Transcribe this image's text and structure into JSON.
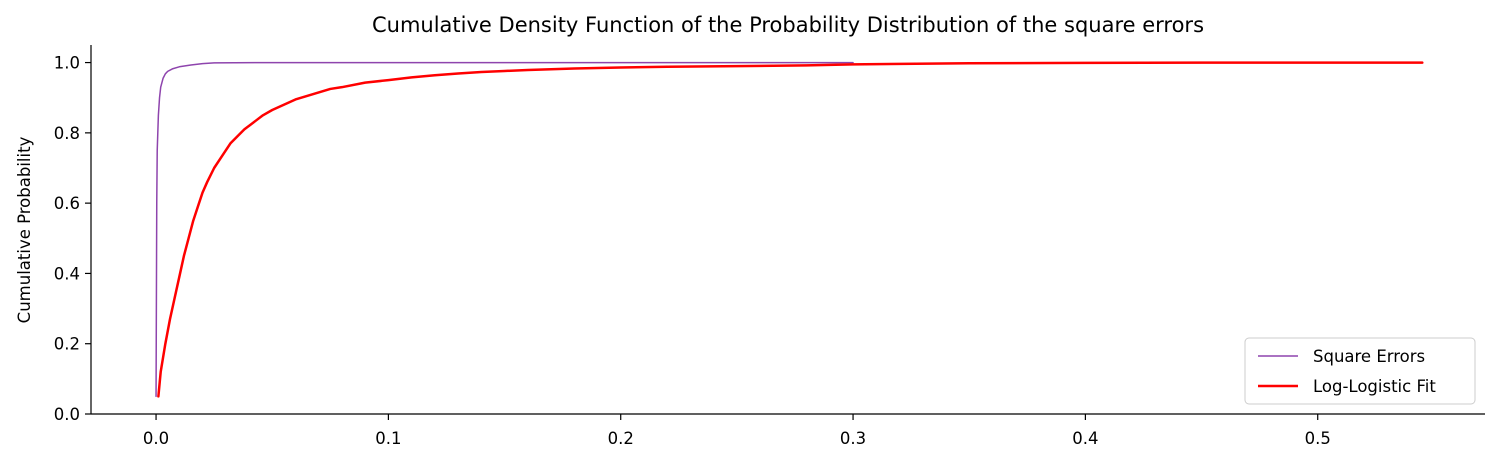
{
  "chart_data": {
    "type": "line",
    "title": "Cumulative Density Function of the Probability Distribution of the square errors",
    "xlabel": "",
    "ylabel": "Cumulative Probability",
    "xlim": [
      -0.028,
      0.572
    ],
    "ylim": [
      0.0,
      1.05
    ],
    "xticks": [
      0.0,
      0.1,
      0.2,
      0.3,
      0.4,
      0.5
    ],
    "xtick_labels": [
      "0.0",
      "0.1",
      "0.2",
      "0.3",
      "0.4",
      "0.5"
    ],
    "yticks": [
      0.0,
      0.2,
      0.4,
      0.6,
      0.8,
      1.0
    ],
    "ytick_labels": [
      "0.0",
      "0.2",
      "0.4",
      "0.6",
      "0.8",
      "1.0"
    ],
    "grid": false,
    "legend_position": "bottom-right",
    "series": [
      {
        "name": "Square Errors",
        "color": "#8e44ad",
        "x": [
          0.0,
          0.0003,
          0.0005,
          0.001,
          0.0015,
          0.002,
          0.003,
          0.004,
          0.005,
          0.007,
          0.01,
          0.015,
          0.02,
          0.025,
          0.05,
          0.1,
          0.2,
          0.3
        ],
        "y": [
          0.05,
          0.6,
          0.75,
          0.85,
          0.9,
          0.93,
          0.955,
          0.968,
          0.975,
          0.982,
          0.988,
          0.993,
          0.997,
          0.999,
          1.0,
          1.0,
          1.0,
          1.0
        ]
      },
      {
        "name": "Log-Logistic Fit",
        "color": "#ff0000",
        "x": [
          0.001,
          0.002,
          0.004,
          0.006,
          0.008,
          0.01,
          0.012,
          0.014,
          0.016,
          0.018,
          0.02,
          0.022,
          0.025,
          0.028,
          0.03,
          0.032,
          0.035,
          0.038,
          0.04,
          0.043,
          0.046,
          0.05,
          0.055,
          0.06,
          0.065,
          0.07,
          0.075,
          0.08,
          0.09,
          0.1,
          0.11,
          0.12,
          0.13,
          0.14,
          0.15,
          0.16,
          0.18,
          0.2,
          0.22,
          0.25,
          0.28,
          0.3,
          0.35,
          0.4,
          0.45,
          0.5,
          0.545
        ],
        "y": [
          0.05,
          0.12,
          0.2,
          0.27,
          0.33,
          0.39,
          0.45,
          0.5,
          0.55,
          0.59,
          0.63,
          0.66,
          0.7,
          0.73,
          0.75,
          0.77,
          0.79,
          0.81,
          0.82,
          0.835,
          0.85,
          0.865,
          0.88,
          0.895,
          0.905,
          0.915,
          0.925,
          0.93,
          0.943,
          0.95,
          0.958,
          0.964,
          0.969,
          0.973,
          0.976,
          0.979,
          0.983,
          0.986,
          0.988,
          0.99,
          0.992,
          0.995,
          0.998,
          0.999,
          1.0,
          1.0,
          1.0
        ]
      }
    ]
  }
}
